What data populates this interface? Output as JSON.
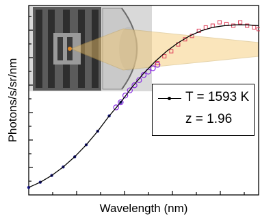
{
  "chart_data": {
    "type": "line",
    "title": "",
    "xlabel": "Wavelength (nm)",
    "ylabel": "Photons/s/sr/nm",
    "x_tick_labels_shown": false,
    "y_tick_labels_shown": false,
    "grid": false,
    "legend": {
      "placement": "center-right",
      "entries": [
        "T = 1593 K",
        "z = 1.96"
      ]
    },
    "series": [
      {
        "name": "T = 1593 K",
        "style": "black line with markers",
        "color": "#000000",
        "description_values": "relative units, 0 = bottom of axis, 1 = top of axis",
        "x": [
          0.0,
          0.05,
          0.1,
          0.15,
          0.2,
          0.25,
          0.3,
          0.35,
          0.4,
          0.45,
          0.5,
          0.55,
          0.6,
          0.65,
          0.7,
          0.75,
          0.8,
          0.85,
          0.9,
          0.95,
          1.0
        ],
        "y": [
          0.02,
          0.05,
          0.09,
          0.14,
          0.2,
          0.27,
          0.35,
          0.44,
          0.52,
          0.61,
          0.69,
          0.76,
          0.82,
          0.87,
          0.91,
          0.94,
          0.96,
          0.97,
          0.975,
          0.975,
          0.97
        ]
      },
      {
        "name": "",
        "style": "dark blue dots",
        "color": "#1a1a8c",
        "x": [
          0.0,
          0.05,
          0.1,
          0.15,
          0.2,
          0.25,
          0.3,
          0.35,
          0.4
        ],
        "y": [
          0.02,
          0.05,
          0.09,
          0.14,
          0.2,
          0.27,
          0.35,
          0.44,
          0.52
        ]
      },
      {
        "name": "",
        "style": "purple open circles",
        "color": "#8a2be2",
        "x": [
          0.38,
          0.4,
          0.42,
          0.44,
          0.46,
          0.48,
          0.5,
          0.52,
          0.54,
          0.56
        ],
        "y": [
          0.49,
          0.52,
          0.56,
          0.59,
          0.62,
          0.65,
          0.68,
          0.7,
          0.72,
          0.74
        ]
      },
      {
        "name": "",
        "style": "red open squares (noisy)",
        "color": "#e0405a",
        "x": [
          0.56,
          0.59,
          0.62,
          0.65,
          0.68,
          0.71,
          0.74,
          0.77,
          0.8,
          0.83,
          0.86,
          0.89,
          0.92,
          0.95,
          0.98,
          1.0
        ],
        "y": [
          0.75,
          0.79,
          0.82,
          0.86,
          0.89,
          0.91,
          0.94,
          0.96,
          0.97,
          0.99,
          0.98,
          0.97,
          0.99,
          0.97,
          0.96,
          0.95
        ]
      }
    ],
    "inset": {
      "content": "rendered cylindrical lamp assembly with lens and emitted light cone"
    }
  },
  "colors": {
    "fit_line": "#000000",
    "blue_points": "#1a1a8c",
    "purple_points": "#8a2be2",
    "red_points": "#e0405a",
    "light_cone": "#f4c66a"
  }
}
